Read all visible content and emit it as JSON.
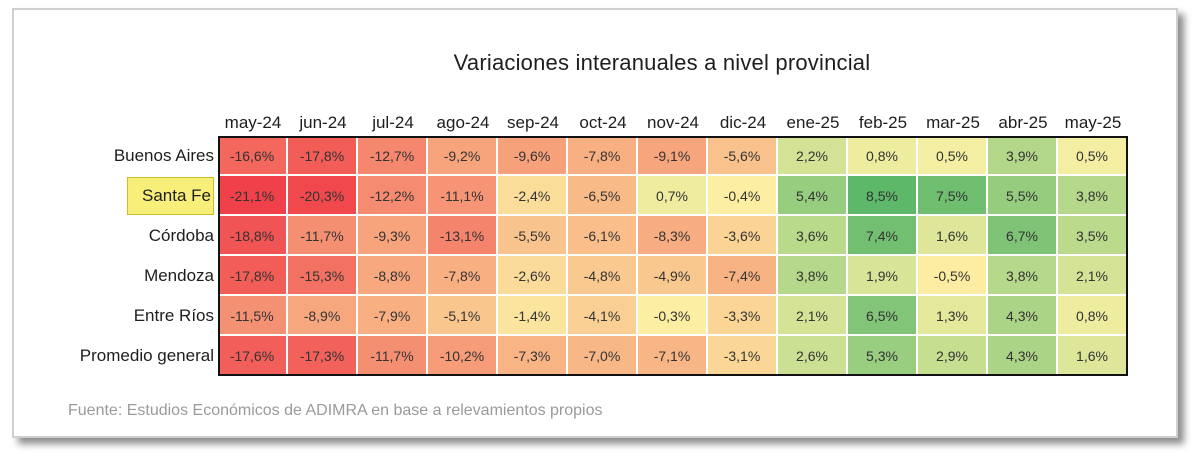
{
  "chart_data": {
    "type": "table",
    "title": "Variaciones interanuales a nivel provincial",
    "columns": [
      "may-24",
      "jun-24",
      "jul-24",
      "ago-24",
      "sep-24",
      "oct-24",
      "nov-24",
      "dic-24",
      "ene-25",
      "feb-25",
      "mar-25",
      "abr-25",
      "may-25"
    ],
    "rows": [
      "Buenos Aires",
      "Santa Fe",
      "Córdoba",
      "Mendoza",
      "Entre Ríos",
      "Promedio general"
    ],
    "highlighted_row": "Santa Fe",
    "values": [
      [
        -16.6,
        -17.8,
        -12.7,
        -9.2,
        -9.6,
        -7.8,
        -9.1,
        -5.6,
        2.2,
        0.8,
        0.5,
        3.9,
        0.5
      ],
      [
        -21.1,
        -20.3,
        -12.2,
        -11.1,
        -2.4,
        -6.5,
        0.7,
        -0.4,
        5.4,
        8.5,
        7.5,
        5.5,
        3.8
      ],
      [
        -18.8,
        -11.7,
        -9.3,
        -13.1,
        -5.5,
        -6.1,
        -8.3,
        -3.6,
        3.6,
        7.4,
        1.6,
        6.7,
        3.5
      ],
      [
        -17.8,
        -15.3,
        -8.8,
        -7.8,
        -2.6,
        -4.8,
        -4.9,
        -7.4,
        3.8,
        1.9,
        -0.5,
        3.8,
        2.1
      ],
      [
        -11.5,
        -8.9,
        -7.9,
        -5.1,
        -1.4,
        -4.1,
        -0.3,
        -3.3,
        2.1,
        6.5,
        1.3,
        4.3,
        0.8
      ],
      [
        -17.6,
        -17.3,
        -11.7,
        -10.2,
        -7.3,
        -7.0,
        -7.1,
        -3.1,
        2.6,
        5.3,
        2.9,
        4.3,
        1.6
      ]
    ],
    "labels": [
      [
        "-16,6%",
        "-17,8%",
        "-12,7%",
        "-9,2%",
        "-9,6%",
        "-7,8%",
        "-9,1%",
        "-5,6%",
        "2,2%",
        "0,8%",
        "0,5%",
        "3,9%",
        "0,5%"
      ],
      [
        "-21,1%",
        "-20,3%",
        "-12,2%",
        "-11,1%",
        "-2,4%",
        "-6,5%",
        "0,7%",
        "-0,4%",
        "5,4%",
        "8,5%",
        "7,5%",
        "5,5%",
        "3,8%"
      ],
      [
        "-18,8%",
        "-11,7%",
        "-9,3%",
        "-13,1%",
        "-5,5%",
        "-6,1%",
        "-8,3%",
        "-3,6%",
        "3,6%",
        "7,4%",
        "1,6%",
        "6,7%",
        "3,5%"
      ],
      [
        "-17,8%",
        "-15,3%",
        "-8,8%",
        "-7,8%",
        "-2,6%",
        "-4,8%",
        "-4,9%",
        "-7,4%",
        "3,8%",
        "1,9%",
        "-0,5%",
        "3,8%",
        "2,1%"
      ],
      [
        "-11,5%",
        "-8,9%",
        "-7,9%",
        "-5,1%",
        "-1,4%",
        "-4,1%",
        "-0,3%",
        "-3,3%",
        "2,1%",
        "6,5%",
        "1,3%",
        "4,3%",
        "0,8%"
      ],
      [
        "-17,6%",
        "-17,3%",
        "-11,7%",
        "-10,2%",
        "-7,3%",
        "-7,0%",
        "-7,1%",
        "-3,1%",
        "2,6%",
        "5,3%",
        "2,9%",
        "4,3%",
        "1,6%"
      ]
    ],
    "color_scale": {
      "min_color": "#f0414a",
      "mid_color": "#fcf1a4",
      "max_color": "#5db86a"
    }
  },
  "source": "Fuente: Estudios Económicos de ADIMRA en base a relevamientos propios"
}
